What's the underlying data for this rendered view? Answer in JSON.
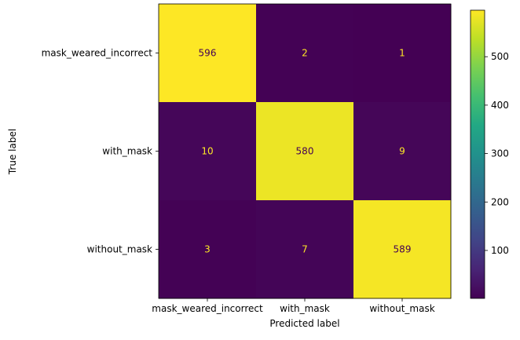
{
  "chart_data": {
    "type": "heatmap",
    "title": "",
    "xlabel": "Predicted label",
    "ylabel": "True label",
    "x_categories": [
      "mask_weared_incorrect",
      "with_mask",
      "without_mask"
    ],
    "y_categories": [
      "mask_weared_incorrect",
      "with_mask",
      "without_mask"
    ],
    "values": [
      [
        596,
        2,
        1
      ],
      [
        10,
        580,
        9
      ],
      [
        3,
        7,
        589
      ]
    ],
    "value_range": [
      1,
      596
    ],
    "colormap": "viridis",
    "colorbar": {
      "ticks": [
        100,
        200,
        300,
        400,
        500
      ],
      "tick_labels": [
        "100",
        "200",
        "300",
        "400",
        "500"
      ]
    },
    "annotation_colors": {
      "on_dark": "#fde725",
      "on_light": "#440154"
    },
    "grid": false
  }
}
